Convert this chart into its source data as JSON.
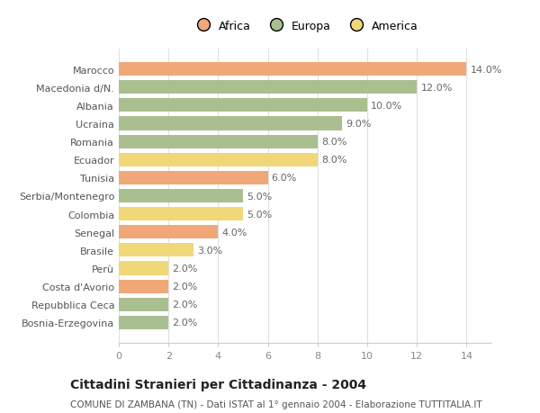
{
  "title": "Cittadini Stranieri per Cittadinanza - 2004",
  "subtitle": "COMUNE DI ZAMBANA (TN) - Dati ISTAT al 1° gennaio 2004 - Elaborazione TUTTITALIA.IT",
  "categories": [
    "Bosnia-Erzegovina",
    "Repubblica Ceca",
    "Costa d'Avorio",
    "Perù",
    "Brasile",
    "Senegal",
    "Colombia",
    "Serbia/Montenegro",
    "Tunisia",
    "Ecuador",
    "Romania",
    "Ucraina",
    "Albania",
    "Macedonia d/N.",
    "Marocco"
  ],
  "values": [
    2.0,
    2.0,
    2.0,
    2.0,
    3.0,
    4.0,
    5.0,
    5.0,
    6.0,
    8.0,
    8.0,
    9.0,
    10.0,
    12.0,
    14.0
  ],
  "continents": [
    "Europa",
    "Europa",
    "Africa",
    "America",
    "America",
    "Africa",
    "America",
    "Europa",
    "Africa",
    "America",
    "Europa",
    "Europa",
    "Europa",
    "Europa",
    "Africa"
  ],
  "colors": {
    "Africa": "#F0A878",
    "Europa": "#AABF90",
    "America": "#F0D878"
  },
  "legend_labels": [
    "Africa",
    "Europa",
    "America"
  ],
  "legend_colors": [
    "#F0A878",
    "#AABF90",
    "#F0D878"
  ],
  "xlim": [
    0,
    15
  ],
  "xticks": [
    0,
    2,
    4,
    6,
    8,
    10,
    12,
    14
  ],
  "background_color": "#FFFFFF",
  "grid_color": "#E0E0E0",
  "bar_height": 0.75,
  "label_fontsize": 8,
  "title_fontsize": 10,
  "subtitle_fontsize": 7.5
}
